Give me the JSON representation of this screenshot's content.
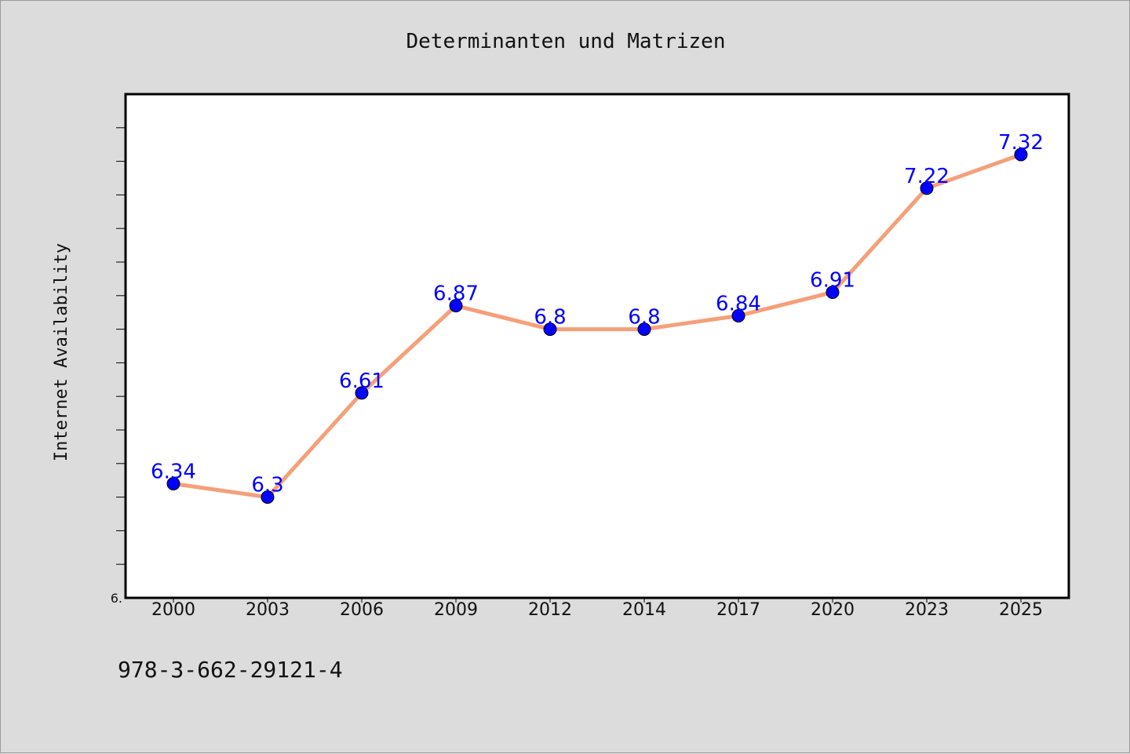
{
  "chart_data": {
    "type": "line",
    "title": "Determinanten und Matrizen",
    "xlabel": "",
    "ylabel": "Internet Availability",
    "categories": [
      "2000",
      "2003",
      "2006",
      "2009",
      "2012",
      "2014",
      "2017",
      "2020",
      "2023",
      "2025"
    ],
    "series": [
      {
        "values": [
          6.34,
          6.3,
          6.61,
          6.87,
          6.8,
          6.8,
          6.84,
          6.91,
          7.22,
          7.32
        ],
        "data_labels": [
          "6.34",
          "6.3",
          "6.61",
          "6.87",
          "6.8",
          "6.8",
          "6.84",
          "6.91",
          "7.22",
          "7.32"
        ],
        "line_color": "#f4a07a",
        "marker_color": "#0000ff"
      }
    ],
    "ylim": [
      6.0,
      7.5
    ],
    "y_minor_tick_step": 0.1,
    "y_tick_labels": [
      "6."
    ],
    "grid": false,
    "legend": "none"
  },
  "footer": {
    "isbn": "978-3-662-29121-4"
  }
}
